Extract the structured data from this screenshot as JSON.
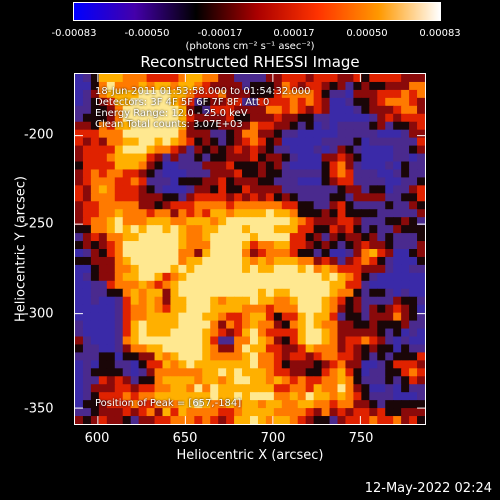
{
  "colorbar": {
    "ticks": [
      "-0.00083",
      "-0.00050",
      "-0.00017",
      "0.00017",
      "0.00050",
      "0.00083"
    ],
    "unit": "(photons cm⁻² s⁻¹ asec⁻²)"
  },
  "title": "Reconstructed RHESSI Image",
  "info": {
    "time": "18-Jun-2011 01:53:58.000 to 01:54:32.000",
    "detectors": "Detectors: 3F 4F 5F 6F 7F 8F, Att 0",
    "energy": "Energy Range: 12.0 - 25.0 keV",
    "clean": "Clean     Total counts: 3.07E+03",
    "peak": "Position of Peak = [657,-184]"
  },
  "axes": {
    "xlabel": "Heliocentric X (arcsec)",
    "ylabel": "Heliocentric Y (arcsec)",
    "xticks": [
      "600",
      "650",
      "700",
      "750"
    ],
    "yticks": [
      "-200",
      "-250",
      "-300",
      "-350"
    ]
  },
  "timestamp": "12-May-2022 02:24",
  "colors": {
    "background": "#000000",
    "colorbar": [
      "#0000ff",
      "#4400aa",
      "#000000",
      "#aa0000",
      "#ff3300",
      "#ff9900",
      "#ffffff"
    ]
  }
}
